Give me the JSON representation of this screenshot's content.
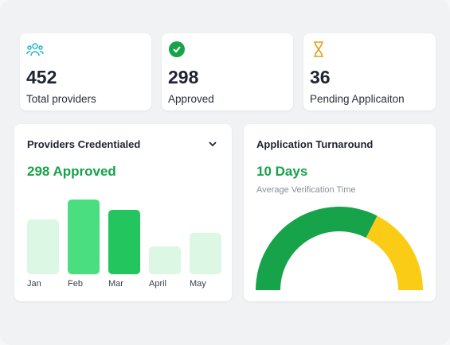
{
  "stats": [
    {
      "value": "452",
      "label": "Total providers"
    },
    {
      "value": "298",
      "label": "Approved"
    },
    {
      "value": "36",
      "label": "Pending Applicaiton"
    }
  ],
  "credentialed": {
    "title": "Providers Credentialed",
    "headline": "298 Approved",
    "chart": {
      "type": "bar",
      "categories": [
        "Jan",
        "Feb",
        "Mar",
        "April",
        "May"
      ],
      "values": [
        69,
        94,
        81,
        35,
        52
      ],
      "colors": [
        "#dcf7e4",
        "#4ade80",
        "#22c55e",
        "#dcf7e4",
        "#dcf7e4"
      ]
    }
  },
  "turnaround": {
    "title": "Application Turnaround",
    "headline": "10 Days",
    "subtitle": "Average Verification Time",
    "chart": {
      "type": "gauge",
      "series": [
        {
          "color": "#16a34a",
          "values": [
            65
          ]
        },
        {
          "color": "#facc15",
          "values": [
            35
          ]
        }
      ]
    }
  }
}
